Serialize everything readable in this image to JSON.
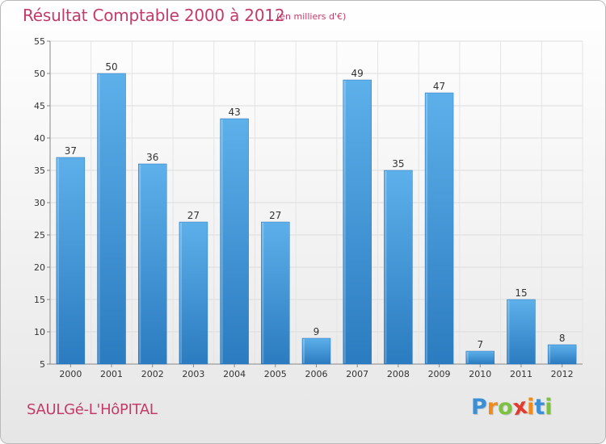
{
  "title": "Résultat Comptable 2000 à 2012",
  "subtitle": "(en milliers d'€)",
  "commune": "SAULGé-L'HôPITAL",
  "logo": {
    "text": "Proxiti",
    "letters": [
      "P",
      "r",
      "o",
      "x",
      "i",
      "t",
      "i"
    ],
    "colors": [
      "#3b8fd6",
      "#f08a1c",
      "#7cc142",
      "#e23a2c",
      "#f08a1c",
      "#3b8fd6",
      "#7cc142"
    ]
  },
  "colors": {
    "bar_light": "#5db0ea",
    "bar_dark": "#2b7bc0",
    "title": "#c43a6a"
  },
  "chart_data": {
    "type": "bar",
    "title": "Résultat Comptable 2000 à 2012",
    "xlabel": "",
    "ylabel": "",
    "categories": [
      "2000",
      "2001",
      "2002",
      "2003",
      "2004",
      "2005",
      "2006",
      "2007",
      "2008",
      "2009",
      "2010",
      "2011",
      "2012"
    ],
    "values": [
      37,
      50,
      36,
      27,
      43,
      27,
      9,
      49,
      35,
      47,
      7,
      15,
      8
    ],
    "ylim": [
      5,
      55
    ],
    "yticks": [
      5,
      10,
      15,
      20,
      25,
      30,
      35,
      40,
      45,
      50,
      55
    ],
    "grid": true
  }
}
